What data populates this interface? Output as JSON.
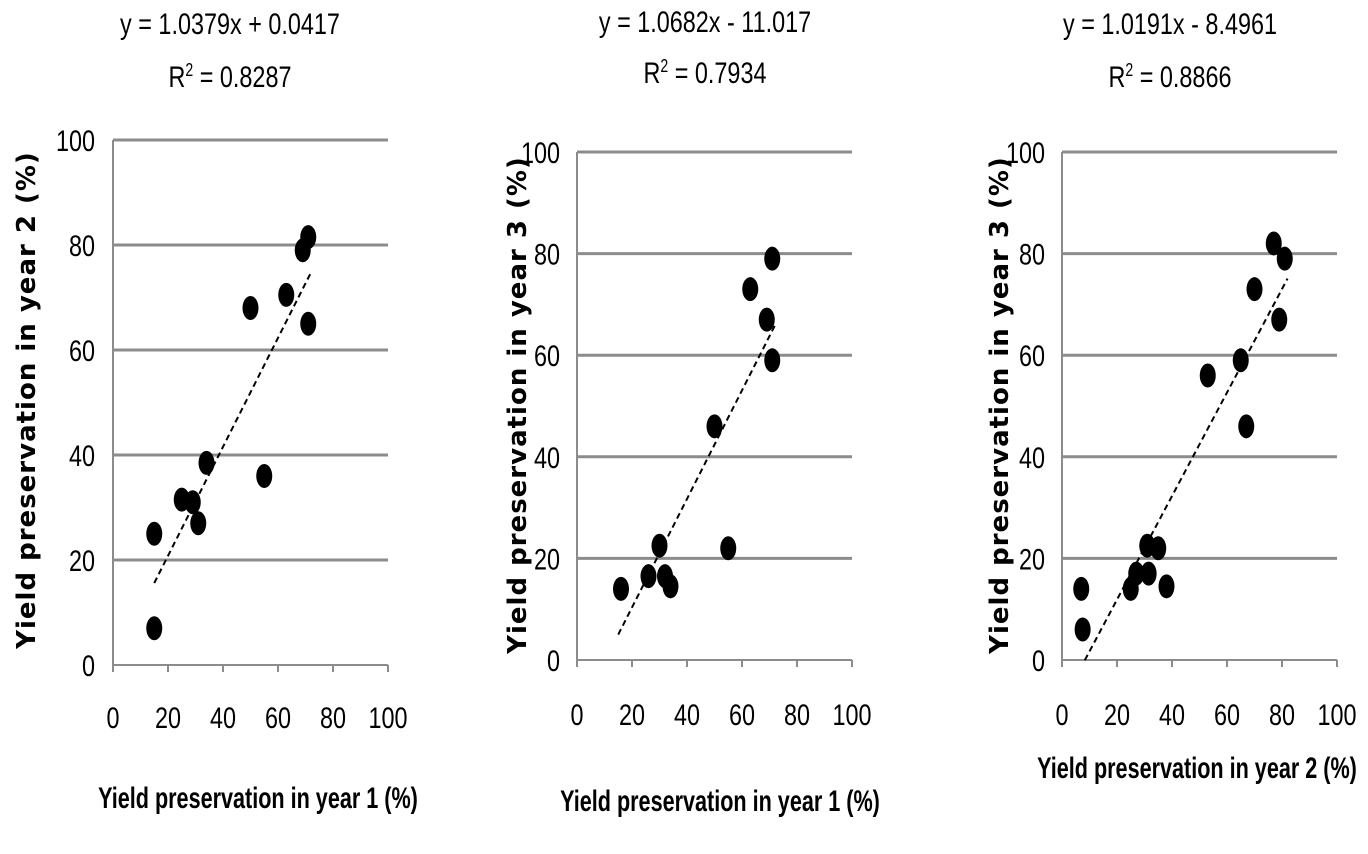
{
  "chart_data": [
    {
      "type": "scatter",
      "equation": "y = 1.0379x + 0.0417",
      "r2_prefix": "R",
      "r2_sup": "2",
      "r2_value": " = 0.8287",
      "xlabel": "Yield preservation in year 1 (%)",
      "ylabel": "Yield preservation in year 2 (%)",
      "xlim": [
        0,
        100
      ],
      "ylim": [
        0,
        100
      ],
      "xticks": [
        "0",
        "20",
        "40",
        "60",
        "80",
        "100"
      ],
      "yticks": [
        "0",
        "20",
        "40",
        "60",
        "80",
        "100"
      ],
      "grid": "horizontal",
      "trendline": {
        "slope": 1.0379,
        "intercept": 0.0417,
        "x_range": [
          15,
          72
        ],
        "style": "dashed"
      },
      "points": [
        [
          15,
          25
        ],
        [
          15,
          7
        ],
        [
          25,
          31.5
        ],
        [
          29,
          31
        ],
        [
          31,
          27
        ],
        [
          34,
          38.5
        ],
        [
          50,
          68
        ],
        [
          55,
          36
        ],
        [
          63,
          70.5
        ],
        [
          69,
          79
        ],
        [
          71,
          81.5
        ],
        [
          71,
          65
        ]
      ]
    },
    {
      "type": "scatter",
      "equation": "y = 1.0682x - 11.017",
      "r2_prefix": "R",
      "r2_sup": "2",
      "r2_value": " = 0.7934",
      "xlabel": "Yield preservation in year 1 (%)",
      "ylabel": "Yield preservation in year 3 (%)",
      "xlim": [
        0,
        100
      ],
      "ylim": [
        0,
        100
      ],
      "xticks": [
        "0",
        "20",
        "40",
        "60",
        "80",
        "100"
      ],
      "yticks": [
        "0",
        "20",
        "40",
        "60",
        "80",
        "100"
      ],
      "grid": "horizontal",
      "trendline": {
        "slope": 1.0682,
        "intercept": -11.017,
        "x_range": [
          15,
          72
        ],
        "style": "dashed"
      },
      "points": [
        [
          16,
          14
        ],
        [
          26,
          16.5
        ],
        [
          30,
          22.5
        ],
        [
          32,
          16.5
        ],
        [
          34,
          14.5
        ],
        [
          50,
          46
        ],
        [
          55,
          22
        ],
        [
          63,
          73
        ],
        [
          69,
          67
        ],
        [
          71,
          79
        ],
        [
          71,
          59
        ]
      ]
    },
    {
      "type": "scatter",
      "equation": "y = 1.0191x - 8.4961",
      "r2_prefix": "R",
      "r2_sup": "2",
      "r2_value": " = 0.8866",
      "xlabel": "Yield preservation in year 2 (%)",
      "ylabel": "Yield preservation in year 3 (%)",
      "xlim": [
        0,
        100
      ],
      "ylim": [
        0,
        100
      ],
      "xticks": [
        "0",
        "20",
        "40",
        "60",
        "80",
        "100"
      ],
      "yticks": [
        "0",
        "20",
        "40",
        "60",
        "80",
        "100"
      ],
      "grid": "horizontal",
      "trendline": {
        "slope": 1.0191,
        "intercept": -8.4961,
        "x_range": [
          8.3,
          82
        ],
        "style": "dashed"
      },
      "points": [
        [
          7,
          14
        ],
        [
          7.5,
          6
        ],
        [
          25,
          14
        ],
        [
          27,
          17
        ],
        [
          31,
          22.5
        ],
        [
          31.5,
          17
        ],
        [
          35,
          22
        ],
        [
          38,
          14.5
        ],
        [
          53,
          56
        ],
        [
          65,
          59
        ],
        [
          67,
          46
        ],
        [
          70,
          73
        ],
        [
          77,
          82
        ],
        [
          79,
          67
        ],
        [
          81,
          79
        ]
      ]
    }
  ]
}
